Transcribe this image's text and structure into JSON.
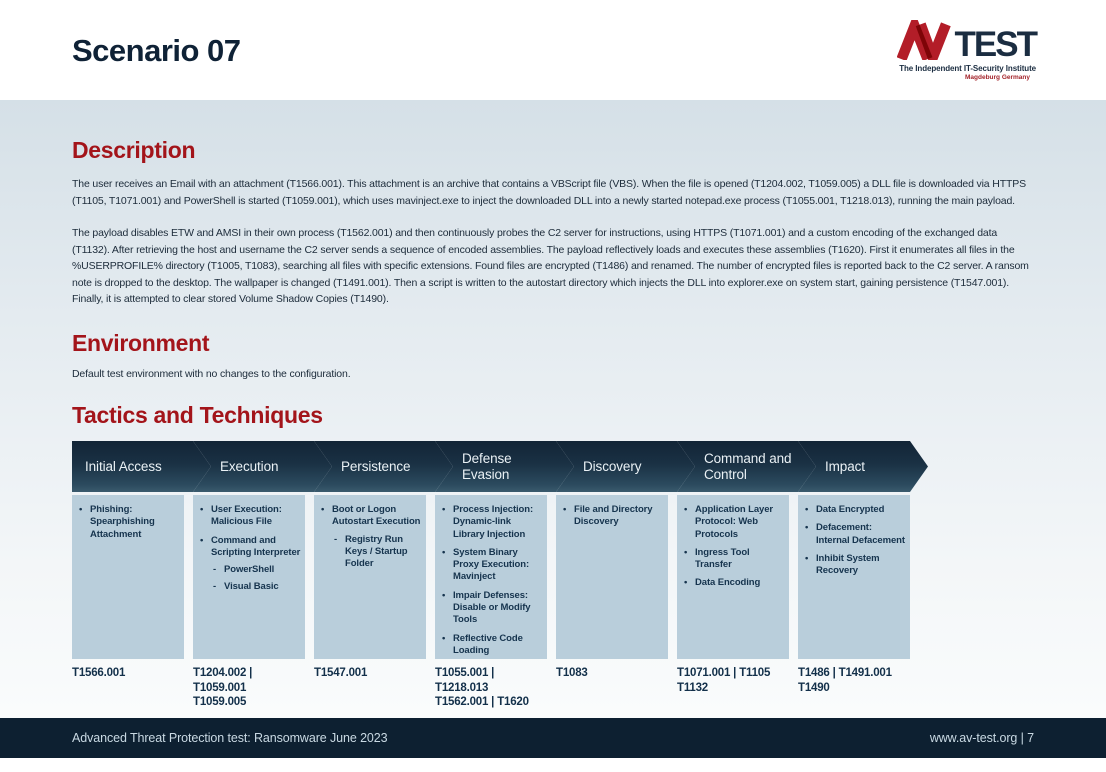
{
  "page": {
    "title": "Scenario 07"
  },
  "logo": {
    "mark": "av-monogram",
    "test": "TEST",
    "tagline": "The Independent IT-Security Institute",
    "subtagline": "Magdeburg Germany"
  },
  "sections": {
    "description": {
      "heading": "Description",
      "paragraphs": [
        "The user receives an Email with an attachment (T1566.001). This attachment is an archive that contains a VBScript file (VBS). When the file is opened (T1204.002, T1059.005) a DLL file is downloaded via HTTPS (T1105, T1071.001) and PowerShell is started (T1059.001), which uses mavinject.exe to inject the downloaded DLL into a newly started notepad.exe process (T1055.001, T1218.013), running the main payload.",
        "The payload disables ETW and AMSI in their own process (T1562.001) and then continuously probes the C2 server for instructions, using HTTPS (T1071.001) and a custom encoding of the exchanged data (T1132). After retrieving the host and username the C2 server sends a sequence of encoded assemblies. The payload reflectively loads and executes these assemblies (T1620). First it enumerates all files in the %USERPROFILE% directory (T1005, T1083), searching all files with specific extensions. Found files are encrypted (T1486) and renamed. The number of encrypted files is reported back to the C2 server. A ransom note is dropped to the desktop. The wallpaper is changed (T1491.001). Then a script is written to the autostart directory which injects the DLL into explorer.exe on system start, gaining persistence (T1547.001). Finally, it is attempted to clear stored Volume Shadow Copies (T1490)."
      ]
    },
    "environment": {
      "heading": "Environment",
      "text": "Default test environment with no changes to the configuration."
    },
    "tactics": {
      "heading": "Tactics and Techniques",
      "columns": [
        {
          "title": "Initial Access",
          "items": [
            {
              "level": 1,
              "text": "Phishing: Spearphishing Attachment"
            }
          ],
          "ids": [
            "T1566.001"
          ]
        },
        {
          "title": "Execution",
          "items": [
            {
              "level": 1,
              "text": "User Execution: Malicious File"
            },
            {
              "level": 1,
              "text": "Command and Scripting Interpreter"
            },
            {
              "level": 2,
              "text": "PowerShell"
            },
            {
              "level": 2,
              "text": "Visual Basic"
            }
          ],
          "ids": [
            "T1204.002 | T1059.001",
            "T1059.005"
          ]
        },
        {
          "title": "Persistence",
          "items": [
            {
              "level": 1,
              "text": "Boot or Logon Autostart Execution"
            },
            {
              "level": 2,
              "text": "Registry Run Keys / Startup Folder"
            }
          ],
          "ids": [
            "T1547.001"
          ]
        },
        {
          "title": "Defense Evasion",
          "items": [
            {
              "level": 1,
              "text": "Process Injection: Dynamic-link Library Injection"
            },
            {
              "level": 1,
              "text": "System Binary Proxy Execution: Mavinject"
            },
            {
              "level": 1,
              "text": "Impair Defenses: Disable or Modify Tools"
            },
            {
              "level": 1,
              "text": "Reflective Code Loading"
            }
          ],
          "ids": [
            "T1055.001 | T1218.013",
            "T1562.001 | T1620"
          ]
        },
        {
          "title": "Discovery",
          "items": [
            {
              "level": 1,
              "text": "File and Directory Discovery"
            }
          ],
          "ids": [
            "T1083"
          ]
        },
        {
          "title": "Command and Control",
          "items": [
            {
              "level": 1,
              "text": "Application Layer Protocol: Web Protocols"
            },
            {
              "level": 1,
              "text": "Ingress Tool Transfer"
            },
            {
              "level": 1,
              "text": "Data Encoding"
            }
          ],
          "ids": [
            "T1071.001 | T1105",
            "T1132"
          ]
        },
        {
          "title": "Impact",
          "items": [
            {
              "level": 1,
              "text": "Data Encrypted"
            },
            {
              "level": 1,
              "text": "Defacement: Internal Defacement"
            },
            {
              "level": 1,
              "text": "Inhibit System Recovery"
            }
          ],
          "ids": [
            "T1486 | T1491.001",
            "T1490"
          ]
        }
      ]
    }
  },
  "footer": {
    "left": "Advanced Threat Protection test: Ransomware June 2023",
    "right": "www.av-test.org | 7"
  },
  "colors": {
    "heading_red": "#a3141a",
    "brand_red": "#b31d28",
    "navy_text": "#16344e",
    "header_chevron_top": "#122436",
    "header_chevron_bottom": "#3a5a6d",
    "cell_background": "#b9cedb",
    "footer_background": "#0d2031",
    "footer_text": "#c9d9e3",
    "content_background_top": "#d5e0e7",
    "content_background_bottom": "#fafcfc"
  }
}
